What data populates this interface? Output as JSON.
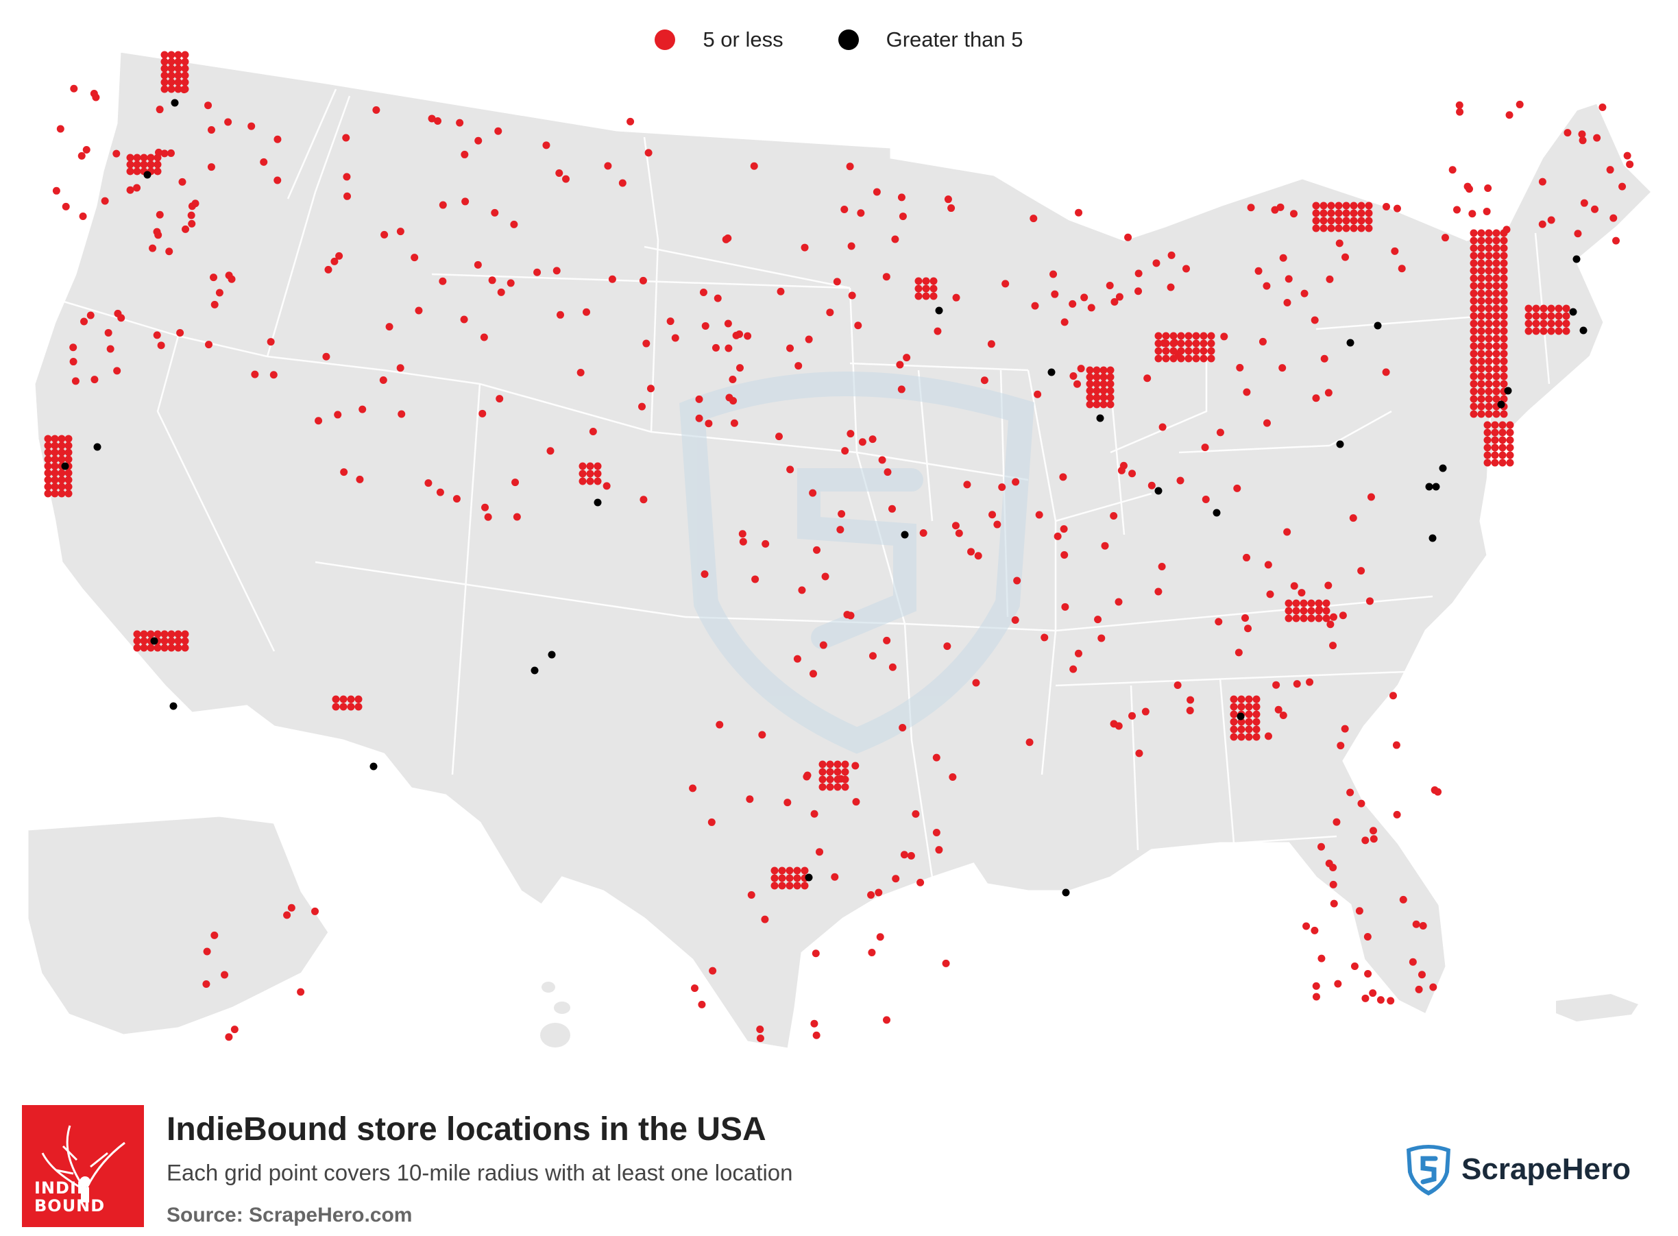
{
  "legend": {
    "low_label": "5 or less",
    "high_label": "Greater than 5",
    "low_color": "#e51e25",
    "high_color": "#000000"
  },
  "title": "IndieBound store locations in the USA",
  "subtitle": "Each grid point covers 10-mile radius with at least one location",
  "source": "Source: ScrapeHero.com",
  "brand": "ScrapeHero",
  "logo_text": "INDIE BOUND",
  "colors": {
    "land": "#e6e6e6",
    "border": "#ffffff",
    "accent": "#e51e25",
    "watermark": "#c9dbe6",
    "brand_blue": "#2f86c8"
  }
}
